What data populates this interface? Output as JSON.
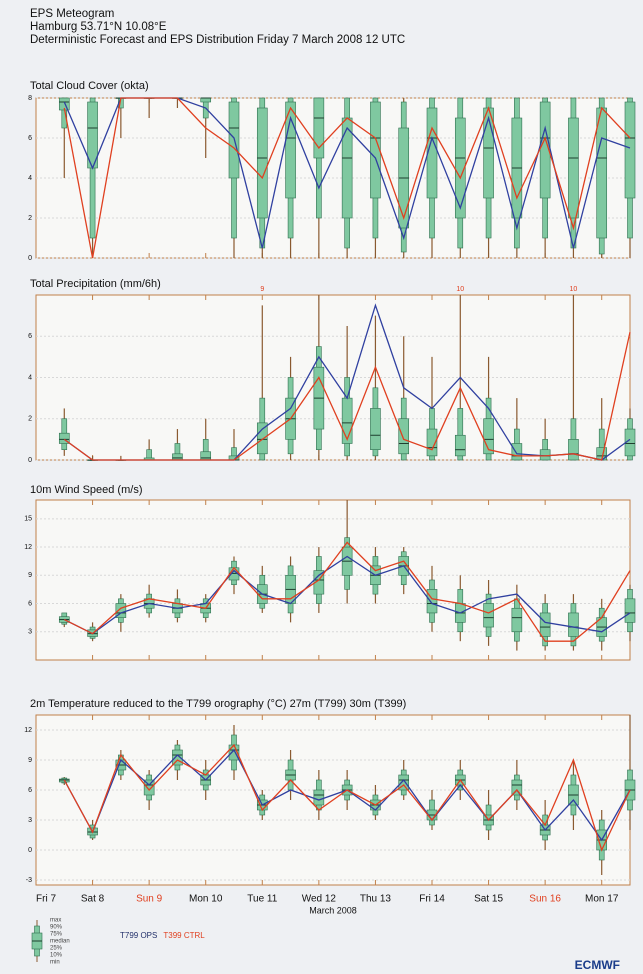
{
  "header": {
    "title": "EPS Meteogram",
    "location": "Hamburg 53.71°N 10.08°E",
    "subtitle": "Deterministic Forecast and EPS Distribution Friday  7 March 2008 12 UTC"
  },
  "legend": {
    "box_labels": [
      "max",
      "90%",
      "75%",
      "median",
      "25%",
      "10%",
      "min"
    ],
    "entries": [
      {
        "name": "T799 OPS",
        "color": "#22306a"
      },
      {
        "name": "T399 CTRL",
        "color": "#e04020"
      }
    ]
  },
  "logo": "ECMWF",
  "chart_data": [
    {
      "type": "boxplot",
      "title": "Total Cloud Cover (okta)",
      "box_color": "#7fc8a0",
      "x": [
        12,
        24,
        36,
        48,
        60,
        72,
        84,
        96,
        108,
        120,
        132,
        144,
        156,
        168,
        180,
        192,
        204,
        216,
        228,
        240,
        252
      ],
      "boxes": [
        [
          4,
          6.5,
          7.4,
          7.8,
          8,
          8,
          8
        ],
        [
          0,
          1,
          4.5,
          6.5,
          7.8,
          8,
          8
        ],
        [
          6,
          7.5,
          8,
          8,
          8,
          8,
          8
        ],
        [
          7,
          8,
          8,
          8,
          8,
          8,
          8
        ],
        [
          7.5,
          8,
          8,
          8,
          8,
          8,
          8
        ],
        [
          5,
          7,
          7.8,
          8,
          8,
          8,
          8
        ],
        [
          0,
          1,
          4,
          6.5,
          7.8,
          8,
          8
        ],
        [
          0,
          0.5,
          2,
          5,
          7.5,
          8,
          8
        ],
        [
          0,
          1,
          3,
          6,
          7.8,
          8,
          8
        ],
        [
          0,
          2,
          5,
          7,
          8,
          8,
          8
        ],
        [
          0,
          0.5,
          2,
          5,
          7,
          8,
          8
        ],
        [
          0,
          1,
          3,
          6,
          7.8,
          8,
          8
        ],
        [
          0,
          0.3,
          1.5,
          4,
          6.5,
          7.8,
          8
        ],
        [
          0,
          1,
          3,
          6,
          7.5,
          8,
          8
        ],
        [
          0,
          0.5,
          2,
          5,
          7,
          8,
          8
        ],
        [
          0,
          1,
          3,
          5.5,
          7.5,
          8,
          8
        ],
        [
          0,
          0.5,
          2,
          4.5,
          7,
          8,
          8
        ],
        [
          0,
          1,
          3,
          6,
          7.8,
          8,
          8
        ],
        [
          0,
          0.5,
          2,
          5,
          7,
          8,
          8
        ],
        [
          0,
          0.2,
          1,
          5,
          7.5,
          8,
          8
        ],
        [
          0,
          1,
          3,
          6,
          7.8,
          8,
          8
        ]
      ],
      "series": [
        {
          "color": "#3040a0",
          "values": [
            7.8,
            4.5,
            8,
            8,
            8,
            7.5,
            6,
            0.5,
            7,
            3.5,
            6.5,
            5,
            1,
            6,
            2.5,
            7,
            1.5,
            6.5,
            0.5,
            6,
            5.5
          ]
        },
        {
          "color": "#e04020",
          "values": [
            7.5,
            0,
            8,
            8,
            8,
            6.5,
            5.5,
            4,
            7.5,
            5.5,
            7,
            6,
            2,
            6.5,
            4,
            7.5,
            3,
            6,
            1.5,
            7.5,
            6
          ]
        }
      ],
      "xlim": [
        0,
        252
      ],
      "xticks": [
        0,
        24,
        48,
        72,
        96,
        120,
        144,
        168,
        192,
        216,
        240
      ],
      "ylim": [
        0,
        8
      ],
      "yticks": [
        0,
        2,
        4,
        6,
        8
      ]
    },
    {
      "type": "boxplot",
      "title": "Total Precipitation (mm/6h)",
      "box_color": "#7fc8a0",
      "x": [
        12,
        24,
        36,
        48,
        60,
        72,
        84,
        96,
        108,
        120,
        132,
        144,
        156,
        168,
        180,
        192,
        204,
        216,
        228,
        240,
        252
      ],
      "boxes": [
        [
          0.2,
          0.5,
          0.8,
          1,
          1.3,
          2,
          2.5
        ],
        [
          0,
          0,
          0,
          0,
          0,
          0,
          0.2
        ],
        [
          0,
          0,
          0,
          0,
          0,
          0,
          0.2
        ],
        [
          0,
          0,
          0,
          0,
          0.1,
          0.5,
          1
        ],
        [
          0,
          0,
          0,
          0.1,
          0.3,
          0.8,
          1.5
        ],
        [
          0,
          0,
          0,
          0.1,
          0.4,
          1,
          2
        ],
        [
          0,
          0,
          0,
          0,
          0.2,
          0.6,
          1.5
        ],
        [
          0,
          0,
          0.3,
          1,
          1.8,
          3,
          7.5
        ],
        [
          0,
          0.3,
          1,
          2,
          3,
          4,
          5
        ],
        [
          0,
          0.5,
          1.5,
          3,
          4.5,
          5.5,
          8
        ],
        [
          0,
          0.2,
          0.8,
          1.8,
          3,
          4,
          6.5
        ],
        [
          0,
          0.2,
          0.5,
          1.2,
          2.5,
          3.5,
          7
        ],
        [
          0,
          0,
          0.3,
          0.8,
          2,
          3,
          6
        ],
        [
          0,
          0,
          0.2,
          0.6,
          1.5,
          2.5,
          5
        ],
        [
          0,
          0,
          0.2,
          0.5,
          1.2,
          2.5,
          8
        ],
        [
          0,
          0,
          0.3,
          1,
          2,
          3,
          5
        ],
        [
          0,
          0,
          0,
          0.2,
          0.8,
          1.5,
          3
        ],
        [
          0,
          0,
          0,
          0.2,
          0.5,
          1,
          2
        ],
        [
          0,
          0,
          0,
          0.3,
          1,
          2,
          8
        ],
        [
          0,
          0,
          0,
          0.2,
          0.6,
          1.5,
          3
        ],
        [
          0,
          0,
          0.2,
          0.8,
          1.5,
          2,
          2.5
        ]
      ],
      "series": [
        {
          "color": "#3040a0",
          "values": [
            1,
            0,
            0,
            0,
            0,
            0,
            0,
            1.5,
            2.5,
            5,
            3,
            7.5,
            3.5,
            2.5,
            4,
            2.5,
            0.3,
            0.2,
            0.3,
            0,
            1
          ]
        },
        {
          "color": "#e04020",
          "values": [
            1,
            0,
            0,
            0,
            0,
            0,
            0,
            1,
            2,
            4,
            1,
            4.5,
            1,
            0.5,
            3.5,
            0.5,
            0.2,
            0.2,
            0.3,
            0,
            6.2
          ]
        }
      ],
      "annotations": [
        {
          "x": 96,
          "text": "9"
        },
        {
          "x": 180,
          "text": "10"
        },
        {
          "x": 228,
          "text": "10"
        }
      ],
      "xlim": [
        0,
        252
      ],
      "xticks": [
        0,
        24,
        48,
        72,
        96,
        120,
        144,
        168,
        192,
        216,
        240
      ],
      "ylim": [
        0,
        8
      ],
      "yticks": [
        0,
        2,
        4,
        6
      ]
    },
    {
      "type": "boxplot",
      "title": "10m Wind Speed (m/s)",
      "box_color": "#7fc8a0",
      "x": [
        12,
        24,
        36,
        48,
        60,
        72,
        84,
        96,
        108,
        120,
        132,
        144,
        156,
        168,
        180,
        192,
        204,
        216,
        228,
        240,
        252
      ],
      "boxes": [
        [
          3.5,
          3.8,
          4,
          4.3,
          4.6,
          5,
          5
        ],
        [
          2,
          2.3,
          2.5,
          2.8,
          3.2,
          3.5,
          4
        ],
        [
          3,
          4,
          4.5,
          5,
          6,
          6.5,
          7
        ],
        [
          4.5,
          5,
          5.5,
          6,
          6.5,
          7,
          8
        ],
        [
          4,
          4.5,
          5,
          5.5,
          6,
          6.5,
          7.5
        ],
        [
          4,
          4.5,
          5,
          5.5,
          6,
          6.5,
          7
        ],
        [
          7,
          8,
          8.5,
          9.2,
          9.8,
          10.5,
          11
        ],
        [
          5,
          5.5,
          6,
          7,
          8,
          9,
          10
        ],
        [
          4,
          5,
          6,
          7.5,
          9,
          10,
          11
        ],
        [
          5,
          6,
          7,
          8.5,
          9.5,
          11,
          12
        ],
        [
          6,
          7.5,
          9,
          10.5,
          12,
          13,
          17
        ],
        [
          6,
          7,
          8,
          9,
          10,
          11,
          12
        ],
        [
          7,
          8,
          9,
          10,
          11,
          11.5,
          12
        ],
        [
          3,
          4,
          5,
          6,
          7.5,
          8.5,
          10
        ],
        [
          2,
          3,
          4,
          5,
          6,
          7.5,
          9
        ],
        [
          1.5,
          2.5,
          3.5,
          4.5,
          6,
          7,
          8.5
        ],
        [
          1,
          2,
          3,
          4.5,
          5.5,
          6.5,
          8
        ],
        [
          1,
          1.5,
          2.5,
          3.5,
          5,
          6,
          7
        ],
        [
          1,
          1.5,
          2.5,
          3.5,
          5,
          6,
          7
        ],
        [
          1,
          2,
          2.5,
          3.5,
          4.5,
          5.5,
          6.5
        ],
        [
          2,
          3,
          4,
          5,
          6.5,
          7.5,
          8
        ]
      ],
      "series": [
        {
          "color": "#3040a0",
          "values": [
            4.3,
            2.8,
            5,
            6,
            5.5,
            6,
            9.5,
            7,
            6,
            9,
            11,
            9,
            10,
            6,
            5,
            6.5,
            7,
            4,
            3.5,
            3,
            5
          ]
        },
        {
          "color": "#e04020",
          "values": [
            4.3,
            2.8,
            5.5,
            6.5,
            6,
            5.5,
            9.8,
            6.5,
            6.5,
            8.5,
            12.5,
            9.5,
            10.5,
            6.5,
            6,
            5,
            6.5,
            2,
            2,
            4.5,
            9.5
          ]
        }
      ],
      "xlim": [
        0,
        252
      ],
      "xticks": [
        0,
        24,
        48,
        72,
        96,
        120,
        144,
        168,
        192,
        216,
        240
      ],
      "ylim": [
        0,
        17
      ],
      "yticks": [
        3,
        6,
        9,
        12,
        15
      ]
    },
    {
      "type": "boxplot",
      "title": "2m Temperature reduced to the T799 orography (°C) 27m (T799) 30m (T399)",
      "box_color": "#7fc8a0",
      "x": [
        12,
        24,
        36,
        48,
        60,
        72,
        84,
        96,
        108,
        120,
        132,
        144,
        156,
        168,
        180,
        192,
        204,
        216,
        228,
        240,
        252
      ],
      "boxes": [
        [
          6.5,
          6.7,
          6.8,
          7,
          7.1,
          7.2,
          7.3
        ],
        [
          1,
          1.2,
          1.5,
          1.8,
          2.2,
          2.5,
          3
        ],
        [
          7,
          7.5,
          8,
          8.5,
          9,
          9.5,
          10
        ],
        [
          4,
          5,
          5.5,
          6.5,
          7,
          7.5,
          8
        ],
        [
          7,
          8,
          8.5,
          9.5,
          10,
          10.5,
          11
        ],
        [
          5,
          6,
          6.5,
          7,
          7.5,
          8,
          9
        ],
        [
          7,
          8,
          9,
          10,
          10.5,
          11.5,
          12.5
        ],
        [
          3,
          3.5,
          4,
          4.5,
          5,
          5.5,
          6
        ],
        [
          5,
          6,
          7,
          7.5,
          8,
          9,
          10
        ],
        [
          3,
          4,
          4.5,
          5.5,
          6,
          7,
          8
        ],
        [
          4,
          5,
          5.5,
          6,
          6.5,
          7,
          8
        ],
        [
          3,
          3.5,
          4,
          4.5,
          5,
          5.5,
          6.5
        ],
        [
          5,
          5.5,
          6,
          7,
          7.5,
          8,
          9
        ],
        [
          2,
          2.5,
          3,
          3.5,
          4,
          5,
          6
        ],
        [
          5,
          6,
          6.5,
          7,
          7.5,
          8,
          9
        ],
        [
          1,
          2,
          2.5,
          3,
          3.5,
          4.5,
          6
        ],
        [
          4,
          5,
          5.5,
          6.5,
          7,
          7.5,
          9
        ],
        [
          0,
          1,
          1.5,
          2,
          2.5,
          3.5,
          5
        ],
        [
          2,
          3.5,
          4.5,
          5.5,
          6.5,
          7.5,
          9
        ],
        [
          -2.5,
          -1,
          0,
          1,
          2,
          3,
          4
        ],
        [
          2,
          4,
          5,
          6,
          7,
          8,
          13.5
        ]
      ],
      "series": [
        {
          "color": "#3040a0",
          "values": [
            7,
            1.8,
            9,
            6.5,
            9.5,
            7,
            10,
            4.5,
            6,
            5,
            6,
            4,
            7,
            3,
            6.5,
            3,
            6,
            2,
            5,
            1,
            6
          ]
        },
        {
          "color": "#e04020",
          "values": [
            7,
            1.8,
            9.5,
            6,
            9,
            7.5,
            10.5,
            4,
            7,
            4,
            6,
            4.5,
            6.5,
            3,
            7,
            3,
            6,
            2.5,
            9,
            0,
            6
          ]
        }
      ],
      "xlim": [
        0,
        252
      ],
      "xticks": [
        {
          "value": 0,
          "label": "Fri 7"
        },
        {
          "value": 24,
          "label": "Sat 8"
        },
        {
          "value": 48,
          "label": "Sun 9"
        },
        {
          "value": 72,
          "label": "Mon 10"
        },
        {
          "value": 96,
          "label": "Tue 11"
        },
        {
          "value": 120,
          "label": "Wed 12"
        },
        {
          "value": 144,
          "label": "Thu 13"
        },
        {
          "value": 168,
          "label": "Fri 14"
        },
        {
          "value": 192,
          "label": "Sat 15"
        },
        {
          "value": 216,
          "label": "Sun 16"
        },
        {
          "value": 240,
          "label": "Mon 17"
        }
      ],
      "highlight_ticks": [
        2,
        9
      ],
      "highlight_color": "#e04020",
      "xlabel": "March 2008",
      "ylim": [
        -3.5,
        13.5
      ],
      "yticks": [
        -3,
        0,
        3,
        6,
        9,
        12
      ]
    }
  ]
}
